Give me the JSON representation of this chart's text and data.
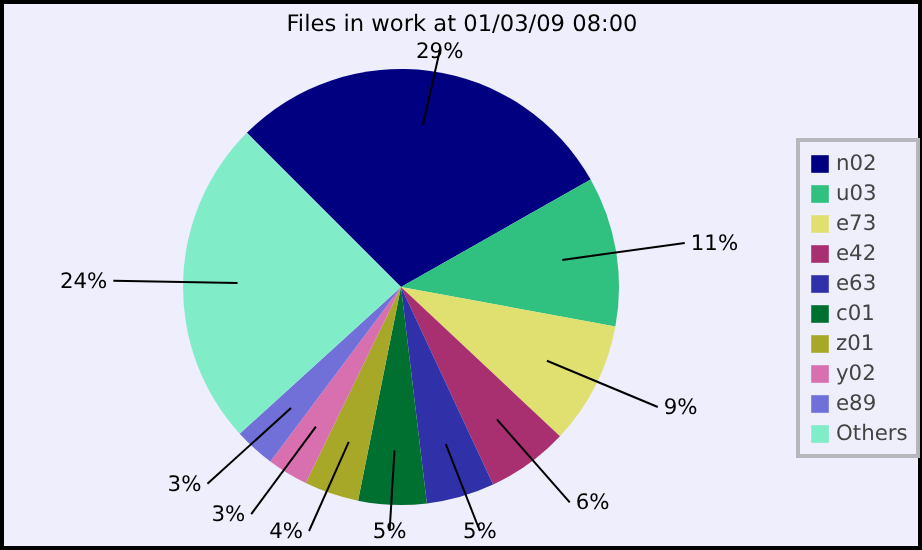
{
  "chart_data": {
    "type": "pie",
    "title": "Files in work at 01/03/09 08:00",
    "categories": [
      "n02",
      "u03",
      "e73",
      "e42",
      "e63",
      "c01",
      "z01",
      "y02",
      "e89",
      "Others"
    ],
    "values": [
      29,
      11,
      9,
      6,
      5,
      5,
      4,
      3,
      3,
      24
    ],
    "colors": [
      "#000080",
      "#30c080",
      "#e0e070",
      "#a83070",
      "#3030a8",
      "#007030",
      "#a8a828",
      "#d870b0",
      "#7070d8",
      "#80ecc8"
    ],
    "value_labels": [
      "29%",
      "11%",
      "9%",
      "6%",
      "5%",
      "5%",
      "4%",
      "3%",
      "3%",
      "24%"
    ],
    "legend": "right"
  }
}
